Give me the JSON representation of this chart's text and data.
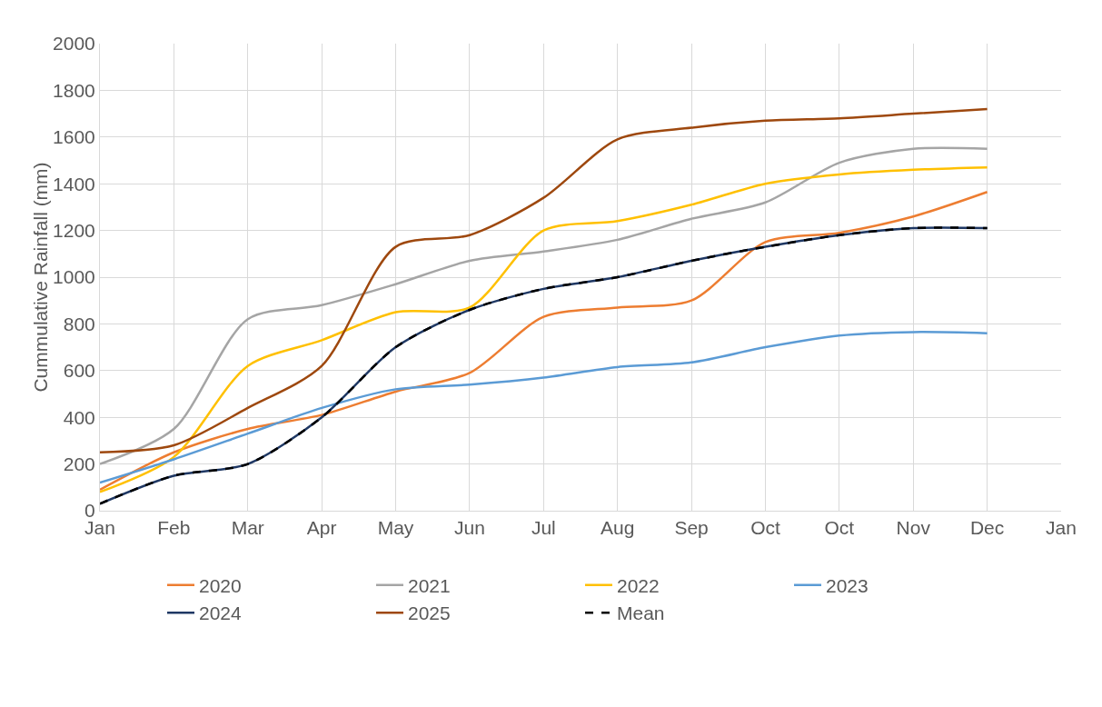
{
  "chart_data": {
    "type": "line",
    "ylabel": "Cummulative Rainfall (mm)",
    "categories": [
      "Jan",
      "Feb",
      "Mar",
      "Apr",
      "May",
      "Jun",
      "Jul",
      "Aug",
      "Sep",
      "Oct",
      "Oct",
      "Nov",
      "Dec",
      "Jan"
    ],
    "ylim": [
      0,
      2000
    ],
    "yticks": [
      0,
      200,
      400,
      600,
      800,
      1000,
      1200,
      1400,
      1600,
      1800,
      2000
    ],
    "grid": true,
    "legend": "bottom",
    "marker": "none",
    "series": [
      {
        "name": "2020",
        "color": "#ed7d31",
        "values": [
          90,
          250,
          350,
          410,
          510,
          590,
          830,
          870,
          900,
          1150,
          1190,
          1260,
          1365,
          null
        ]
      },
      {
        "name": "2021",
        "color": "#a5a5a5",
        "values": [
          200,
          350,
          820,
          880,
          970,
          1070,
          1110,
          1160,
          1250,
          1320,
          1490,
          1550,
          1550,
          null
        ]
      },
      {
        "name": "2022",
        "color": "#ffc000",
        "values": [
          80,
          230,
          620,
          730,
          850,
          870,
          1200,
          1240,
          1310,
          1400,
          1440,
          1460,
          1470,
          null
        ]
      },
      {
        "name": "2023",
        "color": "#5b9bd5",
        "values": [
          120,
          220,
          330,
          440,
          520,
          540,
          570,
          615,
          635,
          700,
          750,
          765,
          760,
          null
        ]
      },
      {
        "name": "2024",
        "color": "#1f3864",
        "values": [
          30,
          150,
          200,
          400,
          700,
          860,
          950,
          1000,
          1070,
          1130,
          1180,
          1210,
          1210,
          null
        ]
      },
      {
        "name": "2025",
        "color": "#9e480e",
        "values": [
          250,
          280,
          440,
          620,
          1130,
          1180,
          1340,
          1590,
          1640,
          1670,
          1680,
          1700,
          1720,
          null
        ]
      },
      {
        "name": "Mean",
        "color": "#000000",
        "line_style": "dashed",
        "values": [
          30,
          150,
          200,
          400,
          700,
          860,
          950,
          1000,
          1070,
          1130,
          1180,
          1210,
          1210,
          null
        ]
      }
    ]
  }
}
